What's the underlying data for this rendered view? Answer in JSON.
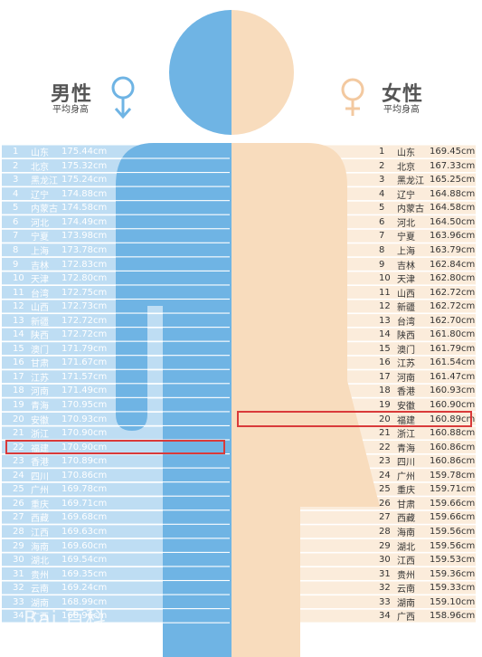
{
  "colors": {
    "male": "#6fb4e4",
    "male_stripe": "#ffffff",
    "female": "#f8dcbd",
    "female_stripe": "#ffffff",
    "highlight": "#d93a3a"
  },
  "male": {
    "title": "男性",
    "subtitle": "平均身高",
    "symbol": "male-symbol-icon"
  },
  "female": {
    "title": "女性",
    "subtitle": "平均身高",
    "symbol": "female-symbol-icon"
  },
  "watermark": "Bai 百科",
  "chart_data": [
    {
      "type": "table",
      "columns": [
        "rank",
        "province",
        "height"
      ],
      "highlight_rank": 22,
      "rows": [
        {
          "rank": "1",
          "province": "山东",
          "height": "175.44cm"
        },
        {
          "rank": "2",
          "province": "北京",
          "height": "175.32cm"
        },
        {
          "rank": "3",
          "province": "黑龙江",
          "height": "175.24cm"
        },
        {
          "rank": "4",
          "province": "辽宁",
          "height": "174.88cm"
        },
        {
          "rank": "5",
          "province": "内蒙古",
          "height": "174.58cm"
        },
        {
          "rank": "6",
          "province": "河北",
          "height": "174.49cm"
        },
        {
          "rank": "7",
          "province": "宁夏",
          "height": "173.98cm"
        },
        {
          "rank": "8",
          "province": "上海",
          "height": "173.78cm"
        },
        {
          "rank": "9",
          "province": "吉林",
          "height": "172.83cm"
        },
        {
          "rank": "10",
          "province": "天津",
          "height": "172.80cm"
        },
        {
          "rank": "11",
          "province": "台湾",
          "height": "172.75cm"
        },
        {
          "rank": "12",
          "province": "山西",
          "height": "172.73cm"
        },
        {
          "rank": "13",
          "province": "新疆",
          "height": "172.72cm"
        },
        {
          "rank": "14",
          "province": "陕西",
          "height": "172.72cm"
        },
        {
          "rank": "15",
          "province": "澳门",
          "height": "171.79cm"
        },
        {
          "rank": "16",
          "province": "甘肃",
          "height": "171.67cm"
        },
        {
          "rank": "17",
          "province": "江苏",
          "height": "171.57cm"
        },
        {
          "rank": "18",
          "province": "河南",
          "height": "171.49cm"
        },
        {
          "rank": "19",
          "province": "青海",
          "height": "170.95cm"
        },
        {
          "rank": "20",
          "province": "安徽",
          "height": "170.93cm"
        },
        {
          "rank": "21",
          "province": "浙江",
          "height": "170.90cm"
        },
        {
          "rank": "22",
          "province": "福建",
          "height": "170.90cm"
        },
        {
          "rank": "23",
          "province": "香港",
          "height": "170.89cm"
        },
        {
          "rank": "24",
          "province": "四川",
          "height": "170.86cm"
        },
        {
          "rank": "25",
          "province": "广州",
          "height": "169.78cm"
        },
        {
          "rank": "26",
          "province": "重庆",
          "height": "169.71cm"
        },
        {
          "rank": "27",
          "province": "西藏",
          "height": "169.68cm"
        },
        {
          "rank": "28",
          "province": "江西",
          "height": "169.63cm"
        },
        {
          "rank": "29",
          "province": "海南",
          "height": "169.60cm"
        },
        {
          "rank": "30",
          "province": "湖北",
          "height": "169.54cm"
        },
        {
          "rank": "31",
          "province": "贵州",
          "height": "169.35cm"
        },
        {
          "rank": "32",
          "province": "云南",
          "height": "169.24cm"
        },
        {
          "rank": "33",
          "province": "湖南",
          "height": "168.99cm"
        },
        {
          "rank": "34",
          "province": "广西",
          "height": "168.96cm"
        }
      ]
    },
    {
      "type": "table",
      "columns": [
        "rank",
        "province",
        "height"
      ],
      "highlight_rank": 20,
      "rows": [
        {
          "rank": "1",
          "province": "山东",
          "height": "169.45cm"
        },
        {
          "rank": "2",
          "province": "北京",
          "height": "167.33cm"
        },
        {
          "rank": "3",
          "province": "黑龙江",
          "height": "165.25cm"
        },
        {
          "rank": "4",
          "province": "辽宁",
          "height": "164.88cm"
        },
        {
          "rank": "5",
          "province": "内蒙古",
          "height": "164.58cm"
        },
        {
          "rank": "6",
          "province": "河北",
          "height": "164.50cm"
        },
        {
          "rank": "7",
          "province": "宁夏",
          "height": "163.96cm"
        },
        {
          "rank": "8",
          "province": "上海",
          "height": "163.79cm"
        },
        {
          "rank": "9",
          "province": "吉林",
          "height": "162.84cm"
        },
        {
          "rank": "10",
          "province": "天津",
          "height": "162.80cm"
        },
        {
          "rank": "11",
          "province": "山西",
          "height": "162.72cm"
        },
        {
          "rank": "12",
          "province": "新疆",
          "height": "162.72cm"
        },
        {
          "rank": "13",
          "province": "台湾",
          "height": "162.70cm"
        },
        {
          "rank": "14",
          "province": "陕西",
          "height": "161.80cm"
        },
        {
          "rank": "15",
          "province": "澳门",
          "height": "161.79cm"
        },
        {
          "rank": "16",
          "province": "江苏",
          "height": "161.54cm"
        },
        {
          "rank": "17",
          "province": "河南",
          "height": "161.47cm"
        },
        {
          "rank": "18",
          "province": "香港",
          "height": "160.93cm"
        },
        {
          "rank": "19",
          "province": "安徽",
          "height": "160.90cm"
        },
        {
          "rank": "20",
          "province": "福建",
          "height": "160.89cm"
        },
        {
          "rank": "21",
          "province": "浙江",
          "height": "160.88cm"
        },
        {
          "rank": "22",
          "province": "青海",
          "height": "160.86cm"
        },
        {
          "rank": "23",
          "province": "四川",
          "height": "160.86cm"
        },
        {
          "rank": "24",
          "province": "广州",
          "height": "159.78cm"
        },
        {
          "rank": "25",
          "province": "重庆",
          "height": "159.71cm"
        },
        {
          "rank": "26",
          "province": "甘肃",
          "height": "159.66cm"
        },
        {
          "rank": "27",
          "province": "西藏",
          "height": "159.66cm"
        },
        {
          "rank": "28",
          "province": "海南",
          "height": "159.56cm"
        },
        {
          "rank": "29",
          "province": "湖北",
          "height": "159.56cm"
        },
        {
          "rank": "30",
          "province": "江西",
          "height": "159.53cm"
        },
        {
          "rank": "31",
          "province": "贵州",
          "height": "159.36cm"
        },
        {
          "rank": "32",
          "province": "云南",
          "height": "159.33cm"
        },
        {
          "rank": "33",
          "province": "湖南",
          "height": "159.10cm"
        },
        {
          "rank": "34",
          "province": "广西",
          "height": "158.96cm"
        }
      ]
    }
  ]
}
